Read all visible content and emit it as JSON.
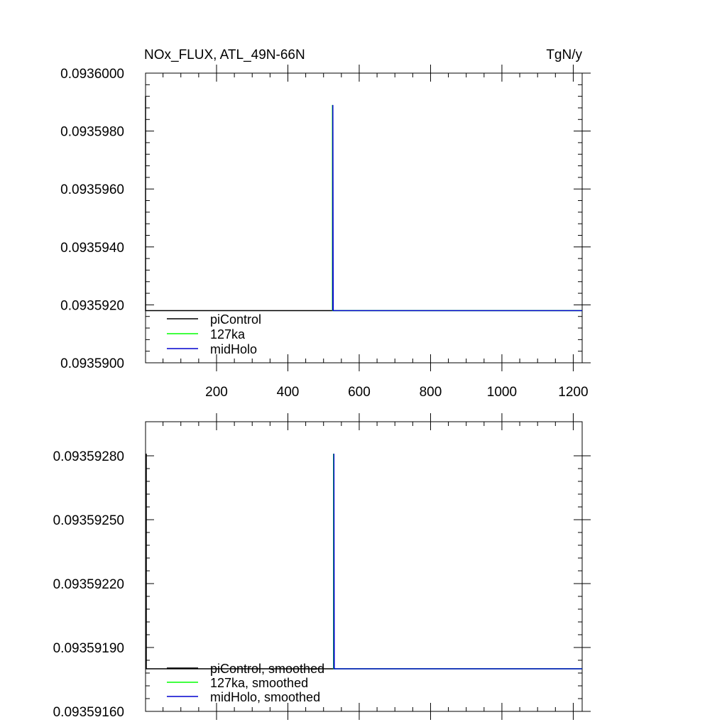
{
  "chart_data": [
    {
      "type": "line",
      "title_left": "NOx_FLUX, ATL_49N-66N",
      "title_right": "TgN/y",
      "xlim": [
        1,
        1225
      ],
      "ylim": [
        0.09359,
        0.0936
      ],
      "x_ticks": [
        200,
        400,
        600,
        800,
        1000,
        1200
      ],
      "x_tick_labels": [
        "200",
        "400",
        "600",
        "800",
        "1000",
        "1200"
      ],
      "y_ticks": [
        0.09359,
        0.093592,
        0.093594,
        0.093596,
        0.093598,
        0.0936
      ],
      "y_tick_labels": [
        "0.0935900",
        "0.0935920",
        "0.0935940",
        "0.0935960",
        "0.0935980",
        "0.0936000"
      ],
      "legend_position": "bottom-left",
      "series": [
        {
          "name": "piControl",
          "color": "#000000",
          "x": [
            1,
            1,
            2,
            525
          ],
          "y": [
            0.0935992,
            0.0935918,
            0.0935918,
            0.0935918
          ]
        },
        {
          "name": "127ka",
          "color": "#00ff00",
          "x": [
            525,
            525,
            526,
            1225
          ],
          "y": [
            0.0935918,
            0.0935989,
            0.0935918,
            0.0935918
          ]
        },
        {
          "name": "midHolo",
          "color": "#0000cd",
          "x": [
            526,
            526,
            527,
            1225
          ],
          "y": [
            0.0935918,
            0.0935989,
            0.0935918,
            0.0935918
          ]
        }
      ]
    },
    {
      "type": "line",
      "xlim": [
        1,
        1225
      ],
      "ylim": [
        0.0935916,
        0.09359296
      ],
      "x_ticks": [
        200,
        400,
        600,
        800,
        1000,
        1200
      ],
      "y_ticks": [
        0.0935916,
        0.0935919,
        0.0935922,
        0.0935925,
        0.0935928
      ],
      "y_tick_labels": [
        "0.09359160",
        "0.09359190",
        "0.09359220",
        "0.09359250",
        "0.09359280"
      ],
      "legend_position": "bottom-left",
      "series": [
        {
          "name": "piControl, smoothed",
          "color": "#000000",
          "x": [
            3,
            3,
            4,
            528
          ],
          "y": [
            0.09359281,
            0.0935918,
            0.0935918,
            0.0935918
          ]
        },
        {
          "name": "127ka, smoothed",
          "color": "#00ff00",
          "x": [
            528,
            528,
            529,
            1225
          ],
          "y": [
            0.0935918,
            0.09359281,
            0.0935918,
            0.0935918
          ]
        },
        {
          "name": "midHolo, smoothed",
          "color": "#0000cd",
          "x": [
            529,
            529,
            530,
            1225
          ],
          "y": [
            0.0935918,
            0.09359281,
            0.0935918,
            0.0935918
          ]
        }
      ]
    }
  ]
}
